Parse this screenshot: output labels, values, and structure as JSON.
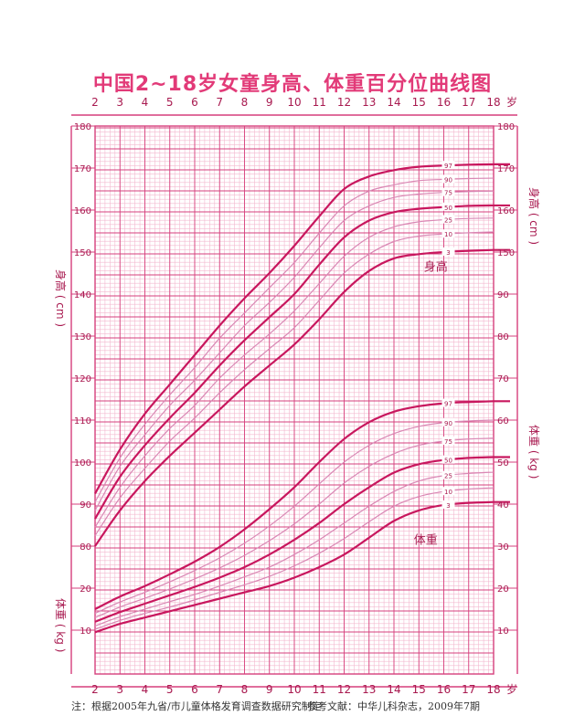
{
  "title": "中国2~18岁女童身高、体重百分位曲线图",
  "footnote": {
    "source": "注：根据2005年九省/市儿童体格发育调查数据研究制定",
    "reference": "参考文献：中华儿科杂志，2009年7期"
  },
  "colors": {
    "grid_major": "#d63f7c",
    "grid_minor": "#f3b8cf",
    "curve_main": "#c8175e",
    "curve_thin": "#d987b4",
    "text": "#a8194f",
    "title": "#e23a78"
  },
  "chart_data": {
    "type": "line",
    "title": "中国2~18岁女童身高、体重百分位曲线图",
    "x": {
      "label": "岁",
      "range": [
        2,
        18
      ],
      "ticks": [
        2,
        3,
        4,
        5,
        6,
        7,
        8,
        9,
        10,
        11,
        12,
        13,
        14,
        15,
        16,
        17,
        18
      ]
    },
    "height_axis": {
      "label": "身高",
      "unit": "cm",
      "range": [
        80,
        180
      ],
      "ticks": [
        80,
        90,
        100,
        110,
        120,
        130,
        140,
        150,
        160,
        170,
        180
      ],
      "right_ticks": [
        150,
        160,
        170,
        180
      ]
    },
    "weight_axis": {
      "label": "体重",
      "unit": "kg",
      "range": [
        5,
        96
      ],
      "left_ticks": [
        10,
        20
      ],
      "right_ticks": [
        10,
        20,
        30,
        40,
        50,
        60,
        70,
        80,
        90
      ]
    },
    "ages": [
      2,
      3,
      4,
      5,
      6,
      7,
      8,
      9,
      10,
      11,
      12,
      13,
      14,
      15,
      16,
      17,
      18
    ],
    "height_label": "身高",
    "weight_label": "体重",
    "height_series": [
      {
        "name": "3",
        "values": [
          80.0,
          88.5,
          95.5,
          101.5,
          107.0,
          112.5,
          118.0,
          123.0,
          128.0,
          134.0,
          140.5,
          145.5,
          148.5,
          149.5,
          150.0,
          150.3,
          150.5
        ]
      },
      {
        "name": "10",
        "values": [
          82.5,
          91.5,
          98.5,
          105.0,
          110.5,
          116.5,
          122.0,
          127.0,
          132.0,
          138.5,
          145.0,
          149.5,
          152.5,
          153.8,
          154.3,
          154.6,
          154.8
        ]
      },
      {
        "name": "25",
        "values": [
          84.5,
          94.0,
          101.5,
          108.0,
          113.5,
          120.0,
          125.5,
          130.5,
          136.0,
          142.5,
          149.0,
          153.5,
          156.0,
          157.2,
          157.7,
          158.0,
          158.1
        ]
      },
      {
        "name": "50",
        "values": [
          86.5,
          96.5,
          104.0,
          110.5,
          116.5,
          123.0,
          129.0,
          134.5,
          140.0,
          147.0,
          153.5,
          157.5,
          159.5,
          160.3,
          160.7,
          161.0,
          161.1
        ]
      },
      {
        "name": "75",
        "values": [
          88.5,
          99.0,
          106.5,
          113.5,
          119.5,
          126.0,
          132.5,
          138.0,
          144.0,
          151.0,
          157.5,
          161.0,
          163.0,
          163.8,
          164.2,
          164.4,
          164.5
        ]
      },
      {
        "name": "90",
        "values": [
          90.5,
          101.0,
          109.0,
          116.0,
          122.5,
          129.5,
          135.5,
          141.5,
          147.5,
          154.5,
          161.0,
          164.5,
          166.0,
          167.0,
          167.3,
          167.5,
          167.6
        ]
      },
      {
        "name": "97",
        "values": [
          92.5,
          103.0,
          111.5,
          118.5,
          125.5,
          132.5,
          139.0,
          145.0,
          151.5,
          158.5,
          165.0,
          168.0,
          169.5,
          170.3,
          170.6,
          170.8,
          170.9
        ]
      }
    ],
    "weight_series": [
      {
        "name": "3",
        "values": [
          9.5,
          11.5,
          13.0,
          14.5,
          16.0,
          17.5,
          19.0,
          20.5,
          22.5,
          25.0,
          28.0,
          32.0,
          36.0,
          38.5,
          39.8,
          40.3,
          40.5
        ]
      },
      {
        "name": "10",
        "values": [
          10.2,
          12.3,
          14.0,
          15.5,
          17.2,
          19.0,
          20.8,
          22.8,
          25.3,
          28.3,
          31.8,
          35.8,
          39.5,
          41.8,
          43.0,
          43.6,
          43.9
        ]
      },
      {
        "name": "25",
        "values": [
          11.0,
          13.2,
          15.0,
          16.8,
          18.5,
          20.5,
          22.7,
          25.0,
          28.0,
          31.5,
          35.5,
          39.5,
          43.0,
          45.5,
          46.8,
          47.3,
          47.6
        ]
      },
      {
        "name": "50",
        "values": [
          12.0,
          14.3,
          16.3,
          18.3,
          20.3,
          22.5,
          25.0,
          28.0,
          31.5,
          35.5,
          40.0,
          44.0,
          47.5,
          49.5,
          50.5,
          51.0,
          51.2
        ]
      },
      {
        "name": "75",
        "values": [
          13.0,
          15.5,
          17.6,
          19.8,
          22.2,
          24.8,
          27.8,
          31.3,
          35.3,
          40.0,
          45.0,
          49.0,
          52.0,
          54.0,
          55.0,
          55.5,
          55.7
        ]
      },
      {
        "name": "90",
        "values": [
          14.0,
          16.7,
          19.0,
          21.5,
          24.2,
          27.2,
          30.7,
          34.8,
          39.5,
          44.8,
          50.0,
          54.0,
          56.8,
          58.5,
          59.4,
          59.8,
          60.0
        ]
      },
      {
        "name": "97",
        "values": [
          15.0,
          18.0,
          20.5,
          23.3,
          26.3,
          29.8,
          34.0,
          38.8,
          44.0,
          50.0,
          55.5,
          59.5,
          62.0,
          63.3,
          64.0,
          64.3,
          64.5
        ]
      }
    ]
  }
}
